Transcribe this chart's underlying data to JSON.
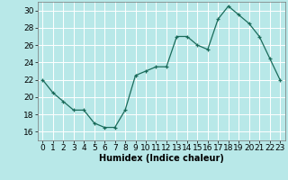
{
  "x": [
    0,
    1,
    2,
    3,
    4,
    5,
    6,
    7,
    8,
    9,
    10,
    11,
    12,
    13,
    14,
    15,
    16,
    17,
    18,
    19,
    20,
    21,
    22,
    23
  ],
  "y": [
    22,
    20.5,
    19.5,
    18.5,
    18.5,
    17,
    16.5,
    16.5,
    18.5,
    22.5,
    23,
    23.5,
    23.5,
    27,
    27,
    26,
    25.5,
    29,
    30.5,
    29.5,
    28.5,
    27,
    24.5,
    22
  ],
  "line_color": "#1a6b5a",
  "marker_color": "#1a6b5a",
  "bg_color": "#b8e8e8",
  "grid_color": "#ffffff",
  "xlabel": "Humidex (Indice chaleur)",
  "xlim": [
    -0.5,
    23.5
  ],
  "ylim": [
    15,
    31
  ],
  "yticks": [
    16,
    18,
    20,
    22,
    24,
    26,
    28,
    30
  ],
  "xticks": [
    0,
    1,
    2,
    3,
    4,
    5,
    6,
    7,
    8,
    9,
    10,
    11,
    12,
    13,
    14,
    15,
    16,
    17,
    18,
    19,
    20,
    21,
    22,
    23
  ],
  "xlabel_fontsize": 7,
  "tick_fontsize": 6.5
}
